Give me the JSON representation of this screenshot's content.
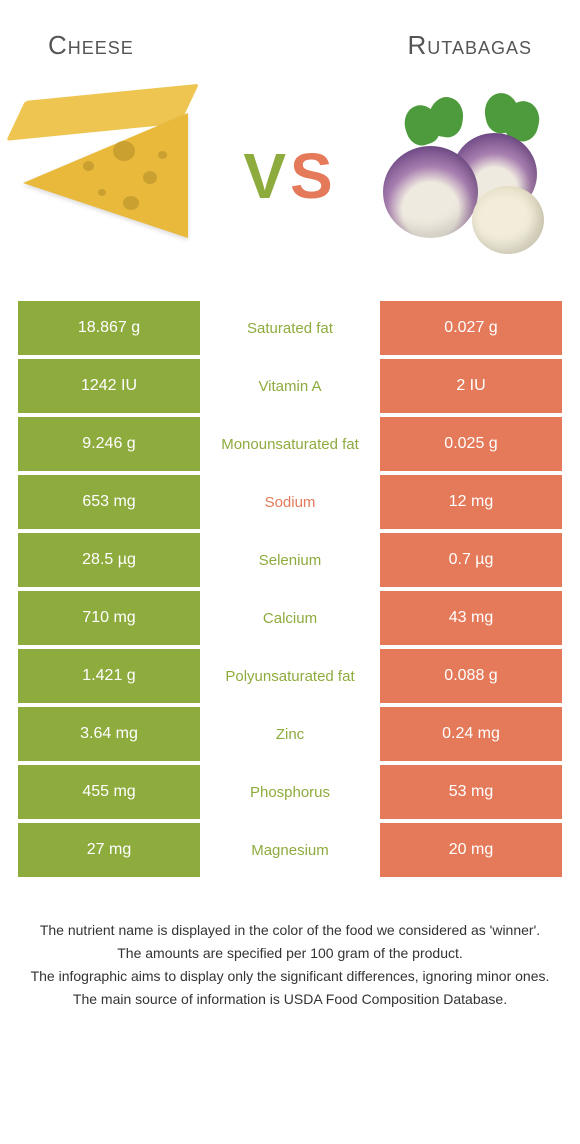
{
  "header": {
    "left_title": "Cheese",
    "right_title": "Rutabagas",
    "vs_v": "V",
    "vs_s": "S"
  },
  "colors": {
    "left_fill": "#8eab3e",
    "right_fill": "#e57a5a",
    "mid_text_left": "#8eab3e",
    "mid_text_right": "#e57a5a",
    "vs_v": "#8eab3e",
    "vs_s": "#e57a5a"
  },
  "rows": [
    {
      "left": "18.867 g",
      "mid": "Saturated fat",
      "right": "0.027 g",
      "winner": "left"
    },
    {
      "left": "1242 IU",
      "mid": "Vitamin A",
      "right": "2 IU",
      "winner": "left"
    },
    {
      "left": "9.246 g",
      "mid": "Monounsaturated fat",
      "right": "0.025 g",
      "winner": "left"
    },
    {
      "left": "653 mg",
      "mid": "Sodium",
      "right": "12 mg",
      "winner": "right"
    },
    {
      "left": "28.5 µg",
      "mid": "Selenium",
      "right": "0.7 µg",
      "winner": "left"
    },
    {
      "left": "710 mg",
      "mid": "Calcium",
      "right": "43 mg",
      "winner": "left"
    },
    {
      "left": "1.421 g",
      "mid": "Polyunsaturated fat",
      "right": "0.088 g",
      "winner": "left"
    },
    {
      "left": "3.64 mg",
      "mid": "Zinc",
      "right": "0.24 mg",
      "winner": "left"
    },
    {
      "left": "455 mg",
      "mid": "Phosphorus",
      "right": "53 mg",
      "winner": "left"
    },
    {
      "left": "27 mg",
      "mid": "Magnesium",
      "right": "20 mg",
      "winner": "left"
    }
  ],
  "footer": {
    "l1": "The nutrient name is displayed in the color of the food we considered as 'winner'.",
    "l2": "The amounts are specified per 100 gram of the product.",
    "l3": "The infographic aims to display only the significant differences, ignoring minor ones.",
    "l4": "The main source of information is USDA Food Composition Database."
  }
}
